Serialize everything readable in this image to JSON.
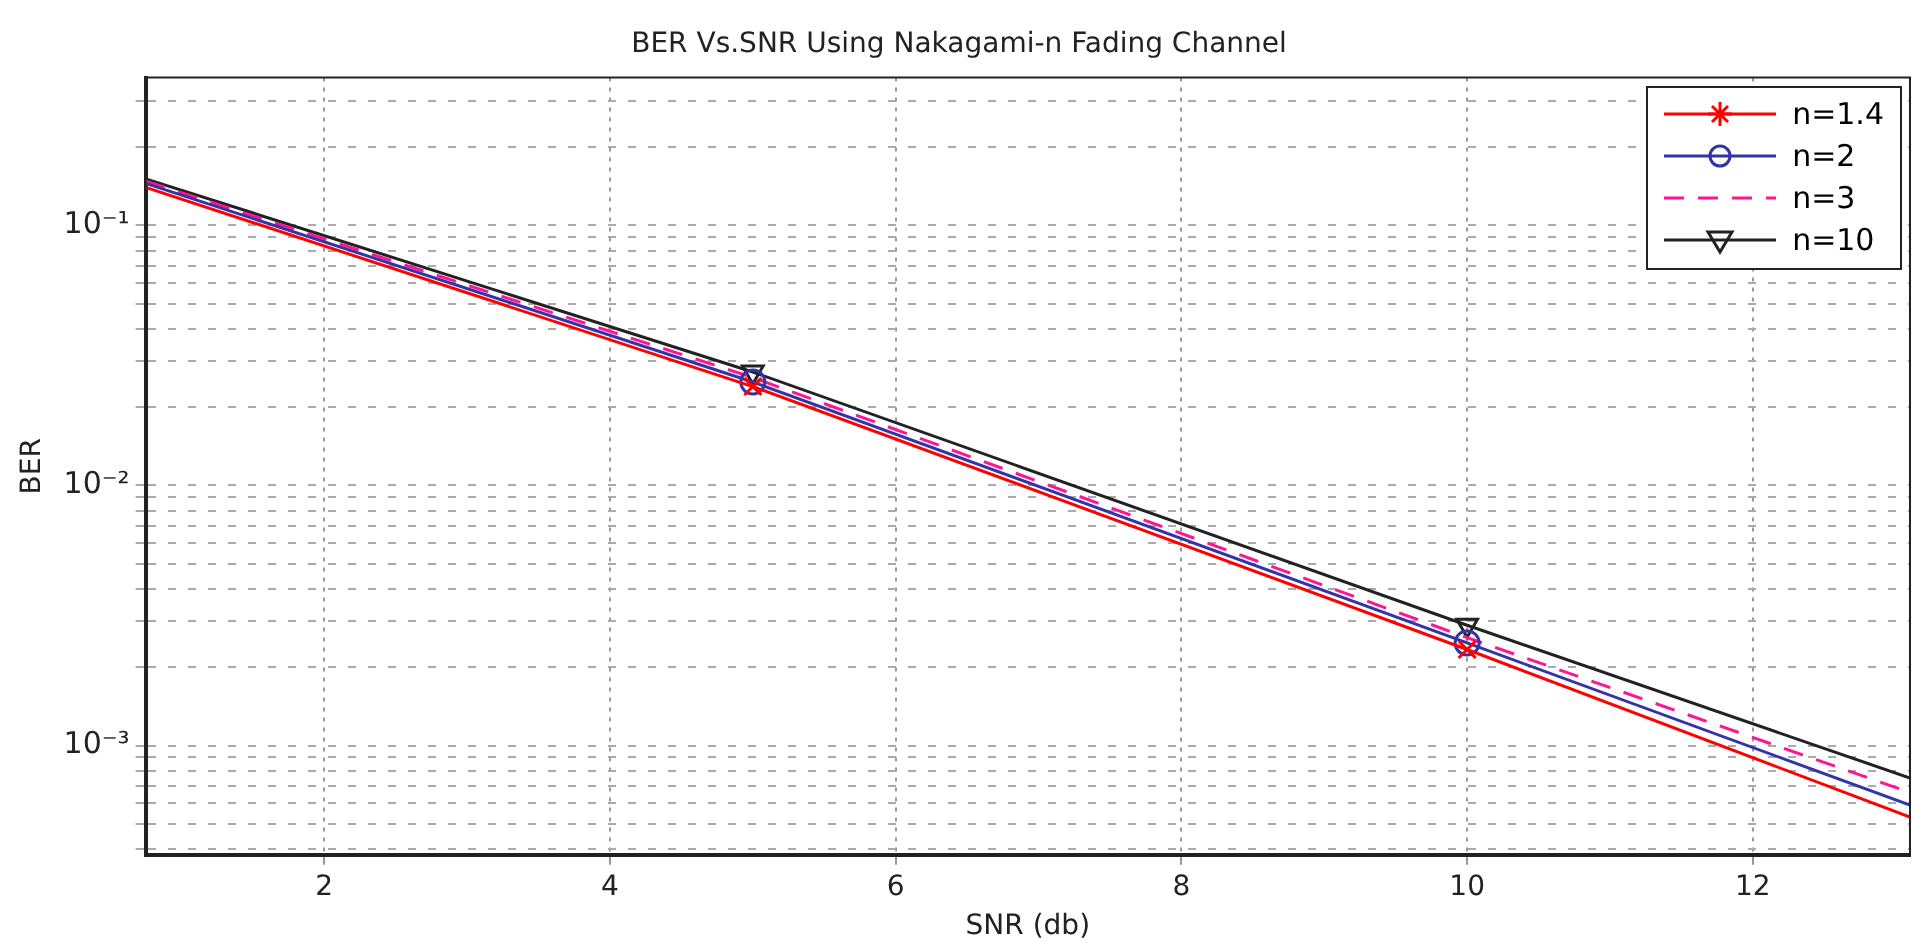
{
  "chart_data": {
    "type": "line",
    "title": "BER Vs.SNR Using Nakagami-n Fading Channel",
    "xlabel": "SNR (db)",
    "ylabel": "BER",
    "xlim": [
      0.75,
      13.1
    ],
    "xticks": [
      2,
      4,
      6,
      8,
      10,
      12
    ],
    "ylim": [
      0.00038,
      0.37
    ],
    "log": "y",
    "yticks": [
      {
        "value": 0.0004,
        "label": null
      },
      {
        "value": 0.0005,
        "label": null
      },
      {
        "value": 0.0006,
        "label": null
      },
      {
        "value": 0.0007,
        "label": null
      },
      {
        "value": 0.0008,
        "label": null
      },
      {
        "value": 0.0009,
        "label": null
      },
      {
        "value": 0.001,
        "label": "10⁻³"
      },
      {
        "value": 0.002,
        "label": null
      },
      {
        "value": 0.003,
        "label": null
      },
      {
        "value": 0.004,
        "label": null
      },
      {
        "value": 0.005,
        "label": null
      },
      {
        "value": 0.006,
        "label": null
      },
      {
        "value": 0.007,
        "label": null
      },
      {
        "value": 0.008,
        "label": null
      },
      {
        "value": 0.009,
        "label": null
      },
      {
        "value": 0.01,
        "label": "10⁻²"
      },
      {
        "value": 0.02,
        "label": null
      },
      {
        "value": 0.03,
        "label": null
      },
      {
        "value": 0.04,
        "label": null
      },
      {
        "value": 0.05,
        "label": null
      },
      {
        "value": 0.06,
        "label": null
      },
      {
        "value": 0.07,
        "label": null
      },
      {
        "value": 0.08,
        "label": null
      },
      {
        "value": 0.09,
        "label": null
      },
      {
        "value": 0.1,
        "label": "10⁻¹"
      },
      {
        "value": 0.2,
        "label": null
      },
      {
        "value": 0.3,
        "label": null
      }
    ],
    "grid": true,
    "legend": "top right",
    "series": [
      {
        "name": "n=1.4",
        "color": "#ff0000",
        "marker": "cross",
        "line_style": "solid",
        "x": [
          0.75,
          5,
          10,
          13.1
        ],
        "values": [
          0.14,
          0.024,
          0.00234,
          0.00053
        ]
      },
      {
        "name": "n=2",
        "color": "#3333aa",
        "marker": "circle",
        "line_style": "solid",
        "x": [
          0.75,
          5,
          10,
          13.1
        ],
        "values": [
          0.145,
          0.025,
          0.00248,
          0.00059
        ]
      },
      {
        "name": "n=3",
        "color": "#ff1493",
        "marker": "none",
        "line_style": "dashed",
        "x": [
          0.75,
          5,
          10,
          13.1
        ],
        "values": [
          0.148,
          0.026,
          0.0026,
          0.00066
        ]
      },
      {
        "name": "n=10",
        "color": "#222222",
        "marker": "triangle",
        "line_style": "solid",
        "x": [
          0.75,
          5,
          10,
          13.1
        ],
        "values": [
          0.151,
          0.0273,
          0.0029,
          0.00075
        ]
      }
    ]
  }
}
